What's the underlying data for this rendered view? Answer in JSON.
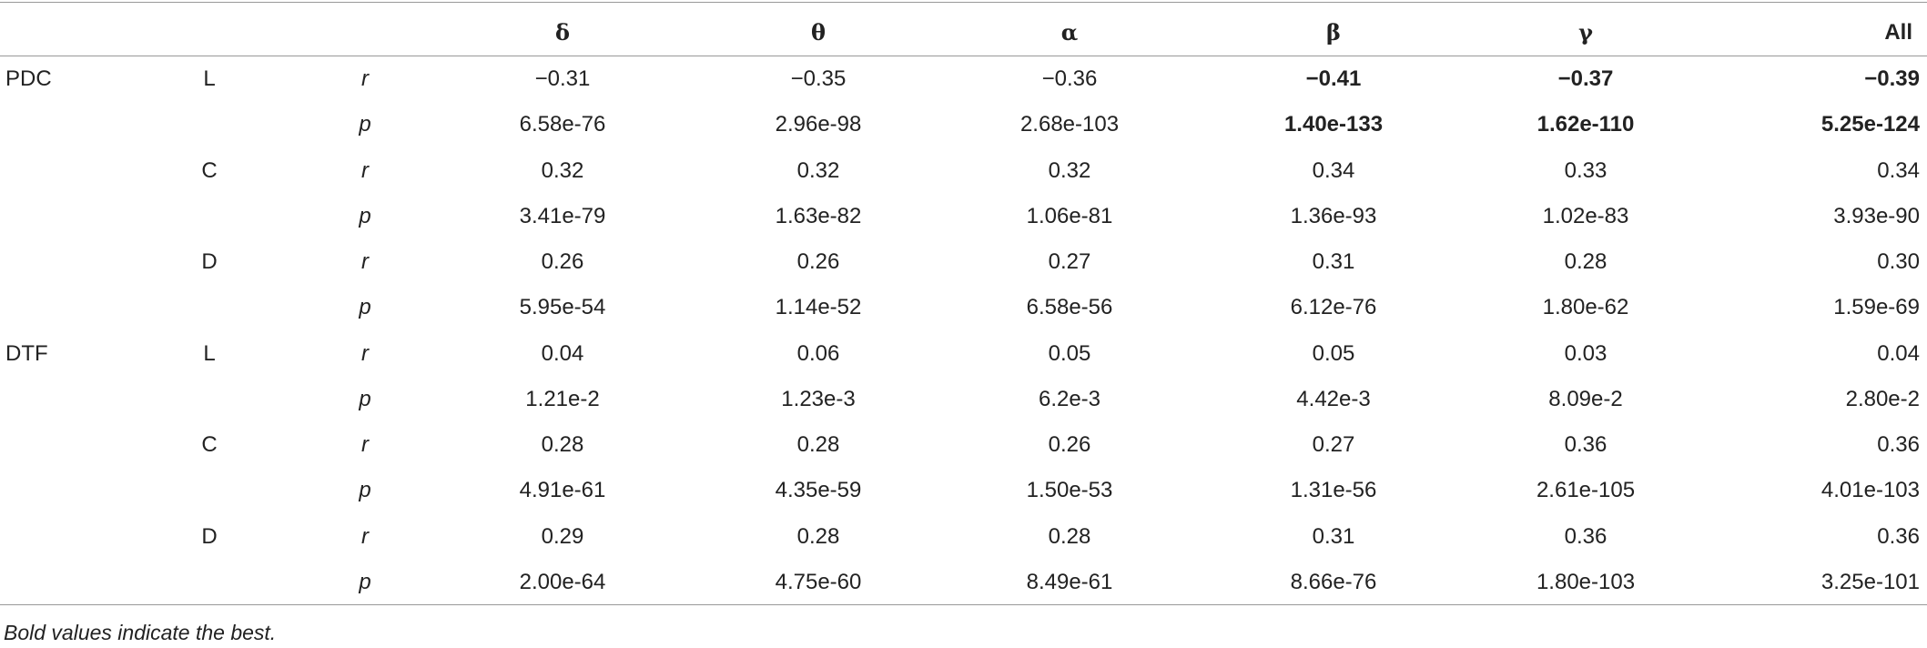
{
  "table": {
    "columns": [
      "δ",
      "θ",
      "α",
      "β",
      "γ",
      "All"
    ],
    "rows": [
      {
        "group": "PDC",
        "metric": "L",
        "stat": "r",
        "values": [
          "−0.31",
          "−0.35",
          "−0.36",
          "−0.41",
          "−0.37",
          "−0.39"
        ],
        "bold": [
          false,
          false,
          false,
          true,
          true,
          true
        ]
      },
      {
        "stat": "p",
        "values": [
          "6.58e-76",
          "2.96e-98",
          "2.68e-103",
          "1.40e-133",
          "1.62e-110",
          "5.25e-124"
        ],
        "bold": [
          false,
          false,
          false,
          true,
          true,
          true
        ]
      },
      {
        "metric": "C",
        "stat": "r",
        "values": [
          "0.32",
          "0.32",
          "0.32",
          "0.34",
          "0.33",
          "0.34"
        ]
      },
      {
        "stat": "p",
        "values": [
          "3.41e-79",
          "1.63e-82",
          "1.06e-81",
          "1.36e-93",
          "1.02e-83",
          "3.93e-90"
        ]
      },
      {
        "metric": "D",
        "stat": "r",
        "values": [
          "0.26",
          "0.26",
          "0.27",
          "0.31",
          "0.28",
          "0.30"
        ]
      },
      {
        "stat": "p",
        "values": [
          "5.95e-54",
          "1.14e-52",
          "6.58e-56",
          "6.12e-76",
          "1.80e-62",
          "1.59e-69"
        ]
      },
      {
        "group": "DTF",
        "metric": "L",
        "stat": "r",
        "values": [
          "0.04",
          "0.06",
          "0.05",
          "0.05",
          "0.03",
          "0.04"
        ]
      },
      {
        "stat": "p",
        "values": [
          "1.21e-2",
          "1.23e-3",
          "6.2e-3",
          "4.42e-3",
          "8.09e-2",
          "2.80e-2"
        ]
      },
      {
        "metric": "C",
        "stat": "r",
        "values": [
          "0.28",
          "0.28",
          "0.26",
          "0.27",
          "0.36",
          "0.36"
        ]
      },
      {
        "stat": "p",
        "values": [
          "4.91e-61",
          "4.35e-59",
          "1.50e-53",
          "1.31e-56",
          "2.61e-105",
          "4.01e-103"
        ]
      },
      {
        "metric": "D",
        "stat": "r",
        "values": [
          "0.29",
          "0.28",
          "0.28",
          "0.31",
          "0.36",
          "0.36"
        ]
      },
      {
        "stat": "p",
        "values": [
          "2.00e-64",
          "4.75e-60",
          "8.49e-61",
          "8.66e-76",
          "1.80e-103",
          "3.25e-101"
        ]
      }
    ],
    "footnote": "Bold values indicate the best."
  }
}
